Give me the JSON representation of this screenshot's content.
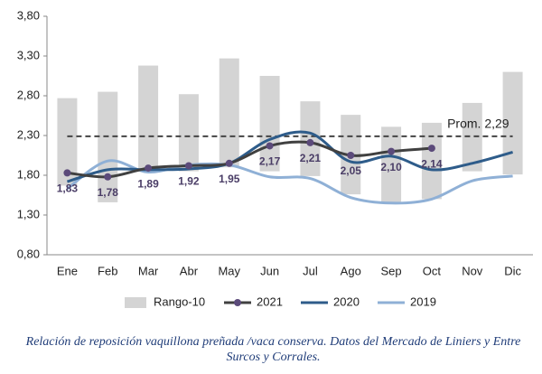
{
  "chart_data": {
    "type": "range-line",
    "categories": [
      "Ene",
      "Feb",
      "Mar",
      "Abr",
      "May",
      "Jun",
      "Jul",
      "Ago",
      "Sep",
      "Oct",
      "Nov",
      "Dic"
    ],
    "ylim": [
      0.8,
      3.8
    ],
    "yticks": [
      {
        "value": 0.8,
        "label": "0,80"
      },
      {
        "value": 1.3,
        "label": "1,30"
      },
      {
        "value": 1.8,
        "label": "1,80"
      },
      {
        "value": 2.3,
        "label": "2,30"
      },
      {
        "value": 2.8,
        "label": "2,80"
      },
      {
        "value": 3.3,
        "label": "3,30"
      },
      {
        "value": 3.8,
        "label": "3,80"
      }
    ],
    "range_series": {
      "name": "Rango-10",
      "color": "#d4d4d4",
      "low": [
        1.67,
        1.46,
        1.85,
        1.85,
        1.9,
        1.85,
        1.79,
        1.56,
        1.46,
        1.5,
        1.85,
        1.81
      ],
      "high": [
        2.77,
        2.85,
        3.18,
        2.82,
        3.27,
        3.05,
        2.73,
        2.56,
        2.41,
        2.46,
        2.71,
        3.1
      ]
    },
    "series": [
      {
        "name": "2021",
        "color": "#404040",
        "marker_color": "#5b4a7a",
        "values": [
          1.83,
          1.78,
          1.89,
          1.92,
          1.95,
          2.17,
          2.21,
          2.05,
          2.1,
          2.14,
          null,
          null
        ],
        "value_labels": [
          "1,83",
          "1,78",
          "1,89",
          "1,92",
          "1,95",
          "2,17",
          "2,21",
          "2,05",
          "2,10",
          "2,14",
          null,
          null
        ]
      },
      {
        "name": "2020",
        "color": "#2e5c8a",
        "values": [
          1.72,
          1.87,
          1.87,
          1.88,
          1.95,
          2.25,
          2.33,
          1.97,
          2.04,
          1.87,
          1.95,
          2.09
        ]
      },
      {
        "name": "2019",
        "color": "#8fb0d6",
        "values": [
          1.63,
          1.98,
          1.84,
          1.93,
          1.93,
          1.78,
          1.76,
          1.52,
          1.45,
          1.5,
          1.73,
          1.79
        ]
      }
    ],
    "reference_line": {
      "value": 2.29,
      "label": "Prom. 2,29",
      "color": "#444444"
    },
    "caption": "Relación de reposición vaquillona preñada /vaca conserva. Datos del Mercado de Liniers y Entre Surcos y Corrales."
  }
}
